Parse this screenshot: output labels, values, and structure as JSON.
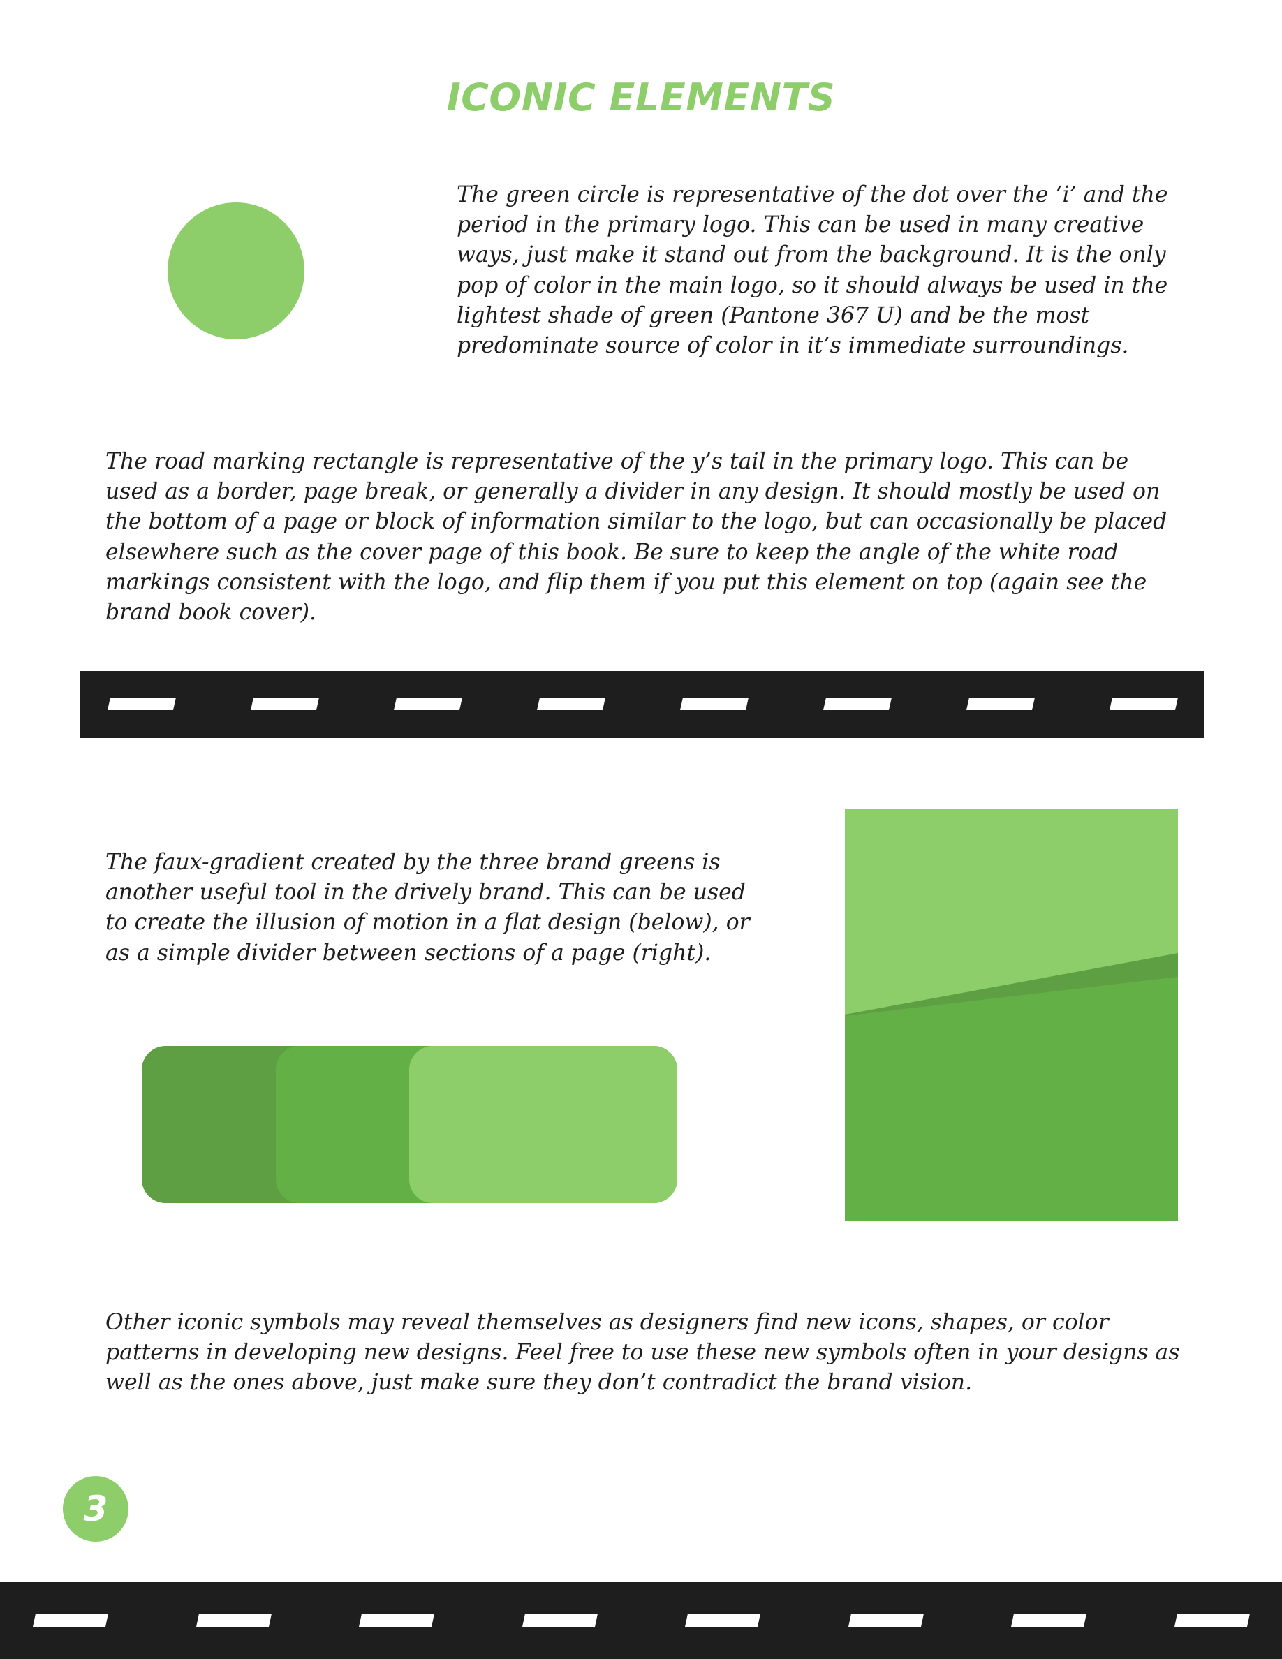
{
  "page": {
    "title": "ICONIC ELEMENTS",
    "page_number": "3"
  },
  "sections": {
    "circle_text": "The green circle is representative of the dot over the ‘i’ and the\nperiod in the primary logo. This can be used in many creative\nways, just make it stand out from the background. It is the only\npop of color in the main logo, so it should always be used in the\nlightest shade of green (Pantone 367 U) and be the most\npredominate source of color in it’s immediate surroundings.",
    "road_text": "The road marking rectangle is representative of the y’s tail in the primary logo. This can be\nused as a border, page break, or generally a divider in any design. It should mostly be used on\nthe bottom of a page or block of information similar to the logo, but can occasionally be placed\nelsewhere such as the cover page of this book. Be sure to keep the angle of the white road\nmarkings consistent with the logo, and flip them if you put this element on top (again see the\nbrand book cover).",
    "gradient_text": "The faux-gradient created by the three brand greens is\nanother useful tool in the drively brand. This can be used\nto create the illusion of motion in a flat design (below), or\nas a simple divider between sections of a page (right).",
    "closing_text": "Other iconic symbols may reveal themselves as designers find new icons, shapes, or color\npatterns in developing new designs. Feel free to use these new symbols often in your designs as\nwell as the ones above, just make sure they don’t contradict the brand vision."
  },
  "colors": {
    "green_light": "#8dce6b",
    "green_mid": "#63b146",
    "green_dark": "#5d9f42",
    "road": "#1e1e1e",
    "marking": "#ffffff",
    "text": "#1e1e1e"
  }
}
